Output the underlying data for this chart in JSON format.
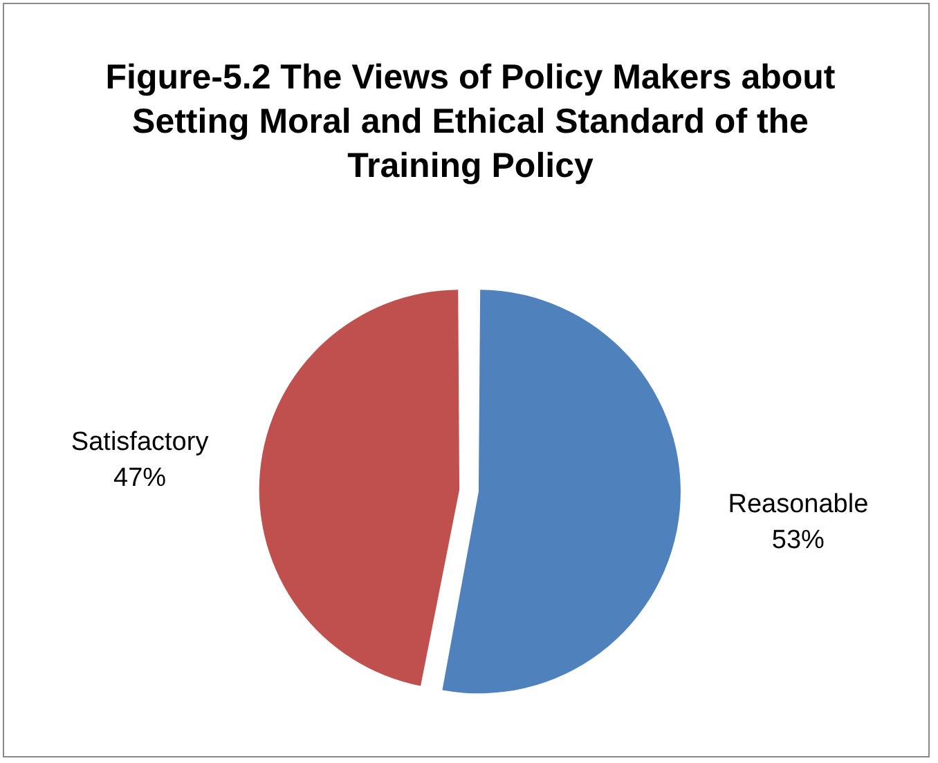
{
  "chart_data": {
    "type": "pie",
    "title": "Figure-5.2 The Views of Policy Makers about Setting Moral and Ethical Standard of the Training Policy",
    "categories": [
      "Reasonable",
      "Satisfactory"
    ],
    "values": [
      53,
      47
    ],
    "colors": [
      "#4f81bd",
      "#c0504d"
    ],
    "value_labels": [
      "53%",
      "47%"
    ],
    "legend": false
  }
}
